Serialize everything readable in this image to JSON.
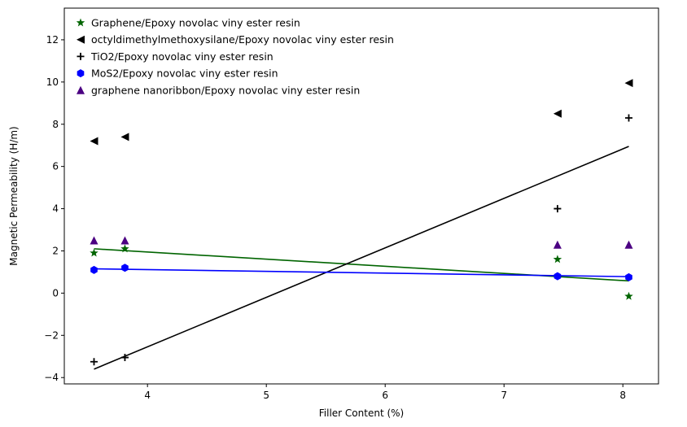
{
  "chart_data": {
    "type": "scatter",
    "xlabel": "Filler Content (%)",
    "ylabel": "Magnetic Permeability (H/m)",
    "xlim": [
      3.3,
      8.3
    ],
    "ylim": [
      -4.3,
      13.5
    ],
    "xticks": [
      4,
      5,
      6,
      7,
      8
    ],
    "yticks": [
      -4,
      -2,
      0,
      2,
      4,
      6,
      8,
      10,
      12
    ],
    "grid": false,
    "legend_position": "top-left",
    "series": [
      {
        "name": "Graphene/Epoxy novolac viny ester resin",
        "marker": "star",
        "color": "#006400",
        "points": [
          [
            3.55,
            1.9
          ],
          [
            3.81,
            2.1
          ],
          [
            7.45,
            1.6
          ],
          [
            8.05,
            -0.15
          ]
        ],
        "fit": {
          "x": [
            3.55,
            8.05
          ],
          "y": [
            2.1,
            0.58
          ],
          "color": "#006400"
        }
      },
      {
        "name": "octyldimethylmethoxysilane/Epoxy novolac viny ester resin",
        "marker": "triangle-left",
        "color": "#000000",
        "points": [
          [
            3.55,
            7.2
          ],
          [
            3.81,
            7.4
          ],
          [
            7.45,
            8.5
          ],
          [
            8.05,
            9.95
          ]
        ]
      },
      {
        "name": "TiO2/Epoxy novolac viny ester resin",
        "marker": "plus",
        "color": "#000000",
        "points": [
          [
            3.55,
            -3.25
          ],
          [
            3.81,
            -3.05
          ],
          [
            7.45,
            4.0
          ],
          [
            8.05,
            8.3
          ]
        ],
        "fit": {
          "x": [
            3.55,
            8.05
          ],
          "y": [
            -3.6,
            6.95
          ],
          "color": "#000000"
        }
      },
      {
        "name": "MoS2/Epoxy novolac viny ester resin",
        "marker": "hexagon",
        "color": "#0000ff",
        "points": [
          [
            3.55,
            1.1
          ],
          [
            3.81,
            1.2
          ],
          [
            7.45,
            0.8
          ],
          [
            8.05,
            0.75
          ]
        ],
        "fit": {
          "x": [
            3.55,
            8.05
          ],
          "y": [
            1.15,
            0.78
          ],
          "color": "#0000ff"
        }
      },
      {
        "name": "graphene nanoribbon/Epoxy novolac viny ester resin",
        "marker": "triangle-up",
        "color": "#4b0082",
        "points": [
          [
            3.55,
            2.5
          ],
          [
            3.81,
            2.5
          ],
          [
            7.45,
            2.3
          ],
          [
            8.05,
            2.3
          ]
        ]
      }
    ]
  }
}
